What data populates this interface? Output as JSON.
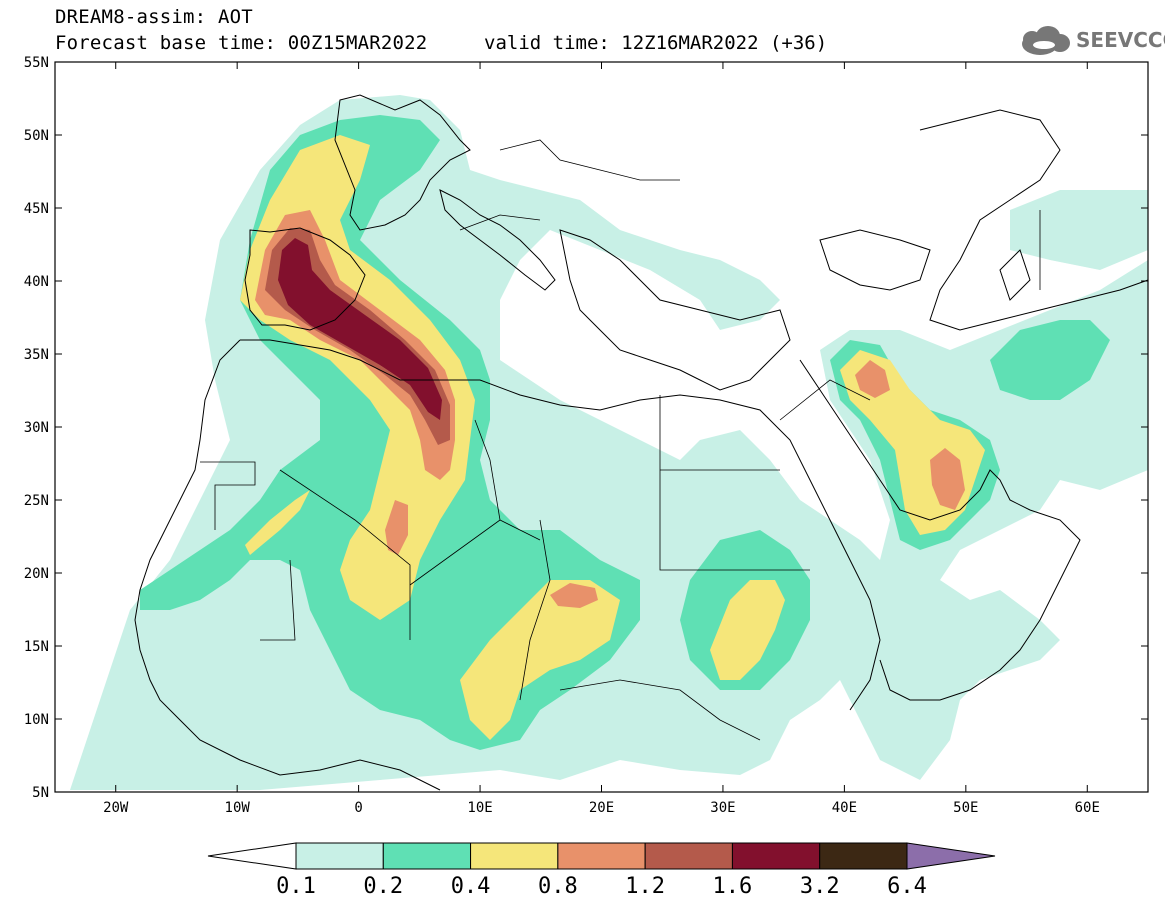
{
  "header": {
    "title": "DREAM8-assim: AOT",
    "base_time": "Forecast base time: 00Z15MAR2022",
    "valid_time": "valid time: 12Z16MAR2022 (+36)",
    "logo_text": "SEEVCCC",
    "logo_icon": "cloud-icon"
  },
  "map": {
    "extent": {
      "lon_min": -25,
      "lon_max": 65,
      "lat_min": 5,
      "lat_max": 55
    },
    "lat_ticks": [
      {
        "value": 55,
        "label": "55N"
      },
      {
        "value": 50,
        "label": "50N"
      },
      {
        "value": 45,
        "label": "45N"
      },
      {
        "value": 40,
        "label": "40N"
      },
      {
        "value": 35,
        "label": "35N"
      },
      {
        "value": 30,
        "label": "30N"
      },
      {
        "value": 25,
        "label": "25N"
      },
      {
        "value": 20,
        "label": "20N"
      },
      {
        "value": 15,
        "label": "15N"
      },
      {
        "value": 10,
        "label": "10N"
      },
      {
        "value": 5,
        "label": "5N"
      }
    ],
    "lon_ticks": [
      {
        "value": -20,
        "label": "20W"
      },
      {
        "value": -10,
        "label": "10W"
      },
      {
        "value": 0,
        "label": "0"
      },
      {
        "value": 10,
        "label": "10E"
      },
      {
        "value": 20,
        "label": "20E"
      },
      {
        "value": 30,
        "label": "30E"
      },
      {
        "value": 40,
        "label": "40E"
      },
      {
        "value": 50,
        "label": "50E"
      },
      {
        "value": 60,
        "label": "60E"
      }
    ]
  },
  "colorbar": {
    "labels": [
      "0.1",
      "0.2",
      "0.4",
      "0.8",
      "1.2",
      "1.6",
      "3.2",
      "6.4"
    ],
    "colors": [
      "#ffffff",
      "#c8f0e6",
      "#5fe0b4",
      "#f5e67a",
      "#e8916a",
      "#b45a4b",
      "#82102d",
      "#3c2814",
      "#8c6eaa"
    ]
  }
}
